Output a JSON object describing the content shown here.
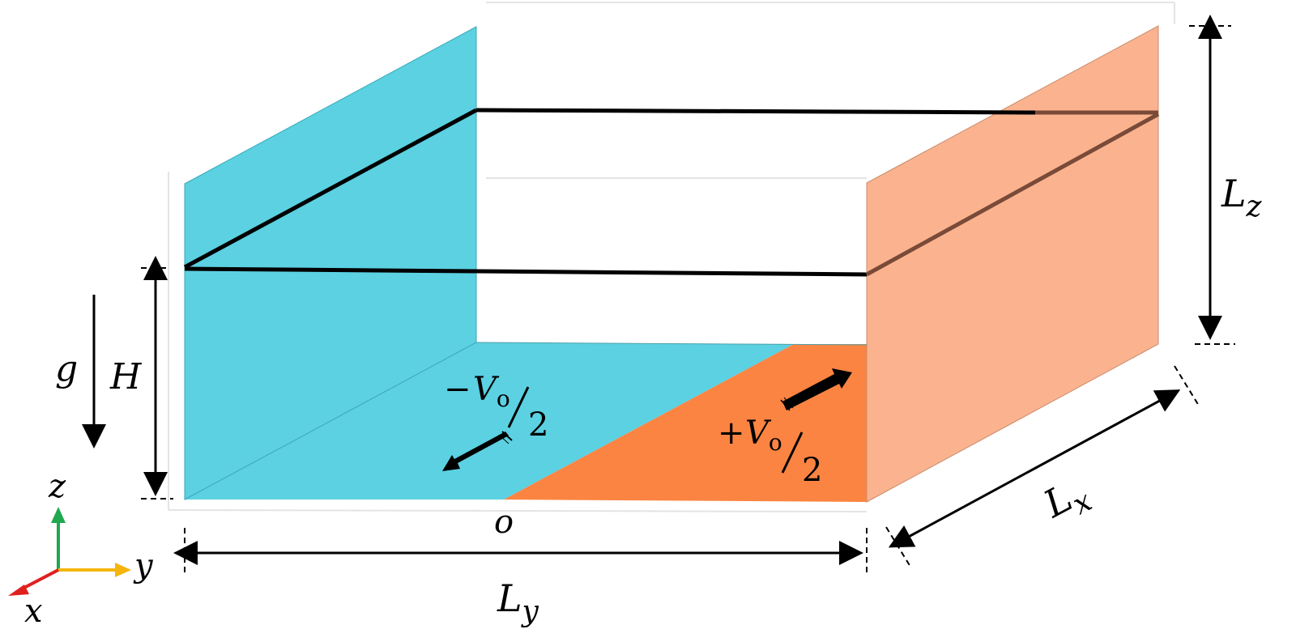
{
  "labels": {
    "gravity": "g",
    "depth": "H",
    "length_z": "L",
    "length_z_sub": "z",
    "length_y": "L",
    "length_y_sub": "y",
    "length_x": "L",
    "length_x_sub": "x",
    "origin": "o",
    "left_velocity_sign": "−",
    "left_velocity": "V",
    "left_velocity_sub": "o",
    "left_velocity_denom": "2",
    "right_velocity_sign": "+",
    "right_velocity": "V",
    "right_velocity_sub": "o",
    "right_velocity_denom": "2",
    "axis_z": "z",
    "axis_y": "y",
    "axis_x": "x"
  },
  "colors": {
    "cyan_wall": "#5bd1e2",
    "salmon_wall": "#fbb38f",
    "orange_floor": "#fb8442",
    "axis_z": "#1fa84f",
    "axis_y": "#f5b50c",
    "axis_x": "#e01f1f"
  }
}
